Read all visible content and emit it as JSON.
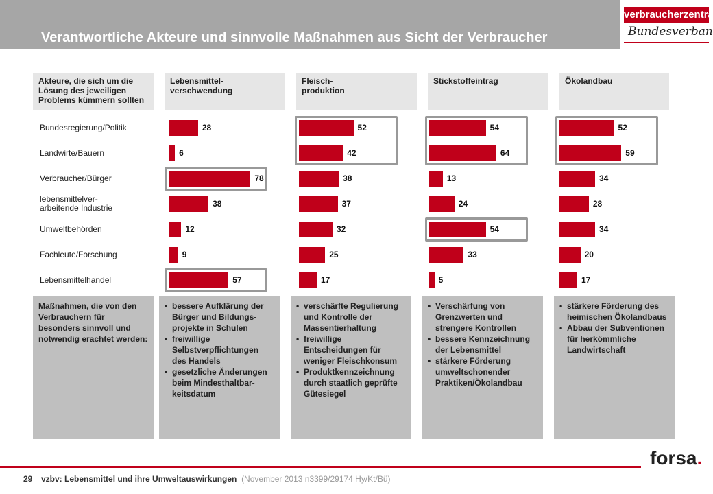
{
  "header": {
    "title": "Verantwortliche Akteure und sinnvolle Maßnahmen aus Sicht der Verbraucher",
    "logo_top": "verbraucherzentrale",
    "logo_sub": "Bundesverband"
  },
  "table": {
    "actors_header": "Akteure, die sich um die Lösung des jeweiligen Problems kümmern sollten",
    "measures_header": "Maßnahmen, die von den Verbrauchern für besonders sinnvoll und notwendig erachtet werden:"
  },
  "chart_data": {
    "type": "bar",
    "orientation": "horizontal",
    "categories": [
      "Bundesregierung/Politik",
      "Landwirte/Bauern",
      "Verbraucher/Bürger",
      "lebensmittelver-arbeitende Industrie",
      "Umweltbehörden",
      "Fachleute/Forschung",
      "Lebensmittelhandel"
    ],
    "series": [
      {
        "name": "Lebensmittel-verschwendung",
        "values": [
          28,
          6,
          78,
          38,
          12,
          9,
          57
        ],
        "highlighted": [
          2,
          6
        ]
      },
      {
        "name": "Fleisch-produktion",
        "values": [
          52,
          42,
          38,
          37,
          32,
          25,
          17
        ],
        "highlighted": [
          0,
          1
        ]
      },
      {
        "name": "Stickstoffeintrag",
        "values": [
          54,
          64,
          13,
          24,
          54,
          33,
          5
        ],
        "highlighted": [
          0,
          1,
          4
        ]
      },
      {
        "name": "Ökolandbau",
        "values": [
          52,
          59,
          34,
          28,
          34,
          20,
          17
        ],
        "highlighted": [
          0,
          1
        ]
      }
    ],
    "bar_color": "#c0001a"
  },
  "row_labels": [
    "Bundesregierung/Politik",
    "Landwirte/Bauern",
    "Verbraucher/Bürger",
    "lebensmittelver-\narbeitende Industrie",
    "Umweltbehörden",
    "Fachleute/Forschung",
    "Lebensmittelhandel"
  ],
  "column_headers": [
    "Lebensmittel-\nverschwendung",
    "Fleisch-\nproduktion",
    "Stickstoffeintrag",
    "Ökolandbau"
  ],
  "measures": [
    [
      "bessere Aufklärung der Bürger und Bildungs-projekte in Schulen",
      "freiwillige Selbstverpflichtungen des Handels",
      "gesetzliche Änderungen beim Mindesthaltbar-keitsdatum"
    ],
    [
      "verschärfte Regulierung und Kontrolle der Massentierhaltung",
      "freiwillige Entscheidungen für weniger Fleischkonsum",
      "Produktkennzeichnung durch staatlich geprüfte Gütesiegel"
    ],
    [
      "Verschärfung von Grenzwerten und strengere Kontrollen",
      "bessere Kennzeichnung der Lebensmittel",
      "stärkere Förderung umweltschonender Praktiken/Ökolandbau"
    ],
    [
      "stärkere Förderung des heimischen Ökolandbaus",
      "Abbau der Subventionen für herkömmliche Landwirtschaft"
    ]
  ],
  "footer": {
    "page_number": "29",
    "study": "vzbv: Lebensmittel und ihre Umweltauswirkungen",
    "meta": "(November 2013   n3399/29174  Hy/Kt/Bü)",
    "brand": "forsa",
    "brand_dot": "."
  }
}
